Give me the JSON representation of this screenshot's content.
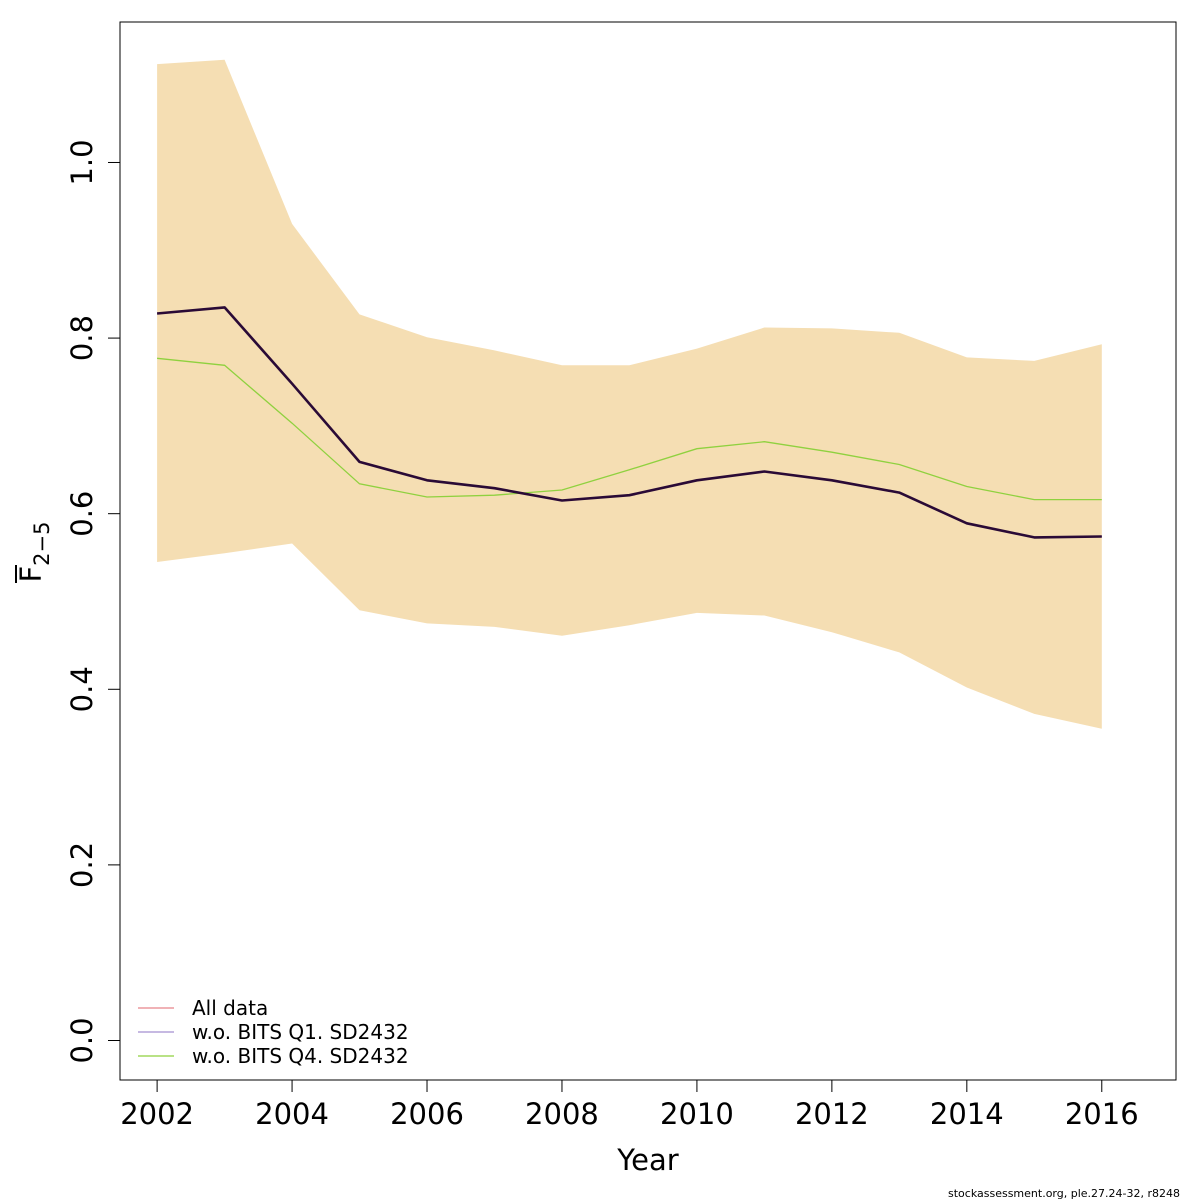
{
  "chart_data": {
    "type": "line",
    "xlabel": "Year",
    "ylabel": "F",
    "ylabel_subscript": "2−5",
    "xlim": [
      2001.45,
      2017.1
    ],
    "ylim": [
      -0.045,
      1.16
    ],
    "xticks": [
      2002,
      2004,
      2006,
      2008,
      2010,
      2012,
      2014,
      2016
    ],
    "xtick_labels": [
      "2002",
      "2004",
      "2006",
      "2008",
      "2010",
      "2012",
      "2014",
      "2016"
    ],
    "yticks": [
      0.0,
      0.2,
      0.4,
      0.6,
      0.8,
      1.0
    ],
    "ytick_labels": [
      "0.0",
      "0.2",
      "0.4",
      "0.6",
      "0.8",
      "1.0"
    ],
    "x": [
      2002,
      2003,
      2004,
      2005,
      2006,
      2007,
      2008,
      2009,
      2010,
      2011,
      2012,
      2013,
      2014,
      2015,
      2016
    ],
    "band": {
      "color": "#f5deb3",
      "lower": [
        0.545,
        0.555,
        0.566,
        0.49,
        0.475,
        0.471,
        0.461,
        0.473,
        0.487,
        0.484,
        0.465,
        0.442,
        0.402,
        0.372,
        0.355
      ],
      "upper": [
        1.112,
        1.117,
        0.93,
        0.827,
        0.801,
        0.786,
        0.769,
        0.769,
        0.788,
        0.812,
        0.811,
        0.806,
        0.778,
        0.774,
        0.793
      ]
    },
    "series": [
      {
        "name": "All data",
        "color": "#e8858a",
        "values": [
          0.828,
          0.835,
          0.748,
          0.659,
          0.638,
          0.629,
          0.615,
          0.621,
          0.638,
          0.648,
          0.638,
          0.624,
          0.589,
          0.573,
          0.574
        ]
      },
      {
        "name": "w.o. BITS Q1. SD2432",
        "color": "#a58fd0",
        "values": [
          0.828,
          0.835,
          0.748,
          0.659,
          0.638,
          0.629,
          0.615,
          0.621,
          0.638,
          0.648,
          0.638,
          0.624,
          0.589,
          0.573,
          0.574
        ]
      },
      {
        "name": "w.o. BITS Q4. SD2432",
        "color": "#8fd13f",
        "values": [
          0.777,
          0.769,
          0.703,
          0.634,
          0.619,
          0.621,
          0.627,
          0.65,
          0.674,
          0.682,
          0.67,
          0.656,
          0.631,
          0.616,
          0.616
        ]
      }
    ],
    "main_line": {
      "color": "#2a0a36",
      "values": [
        0.828,
        0.835,
        0.748,
        0.659,
        0.638,
        0.629,
        0.615,
        0.621,
        0.638,
        0.648,
        0.638,
        0.624,
        0.589,
        0.573,
        0.574
      ]
    },
    "legend_position": "bottom-left",
    "grid": false
  },
  "footer": "stockassessment.org, ple.27.24-32, r8248"
}
